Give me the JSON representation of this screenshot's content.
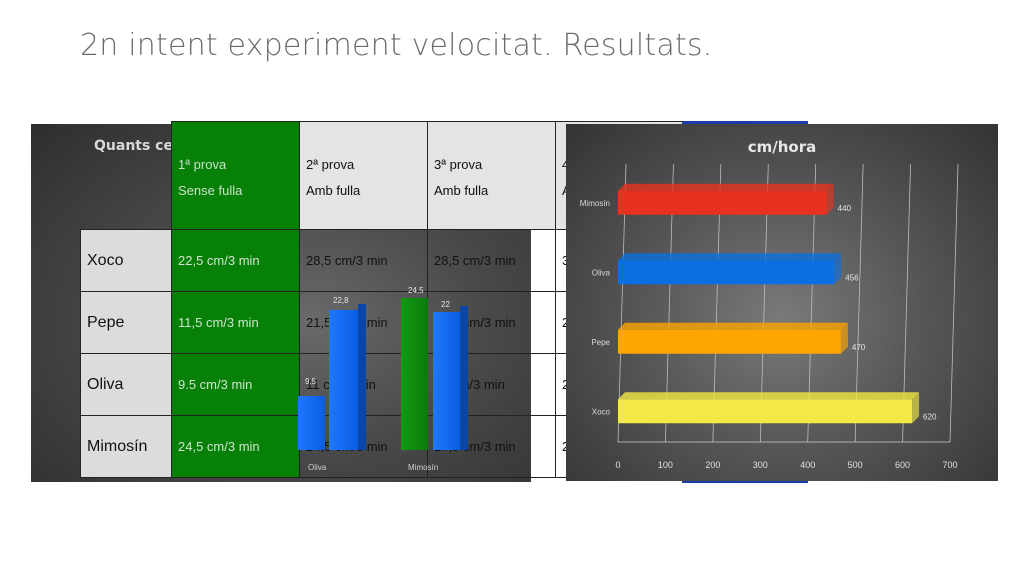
{
  "slide_title": "2n intent experiment velocitat. Resultats.",
  "table": {
    "columns": [
      {
        "line1": "1ª prova",
        "line2": "Sense fulla"
      },
      {
        "line1": "2ª prova",
        "line2": "Amb fulla"
      },
      {
        "line1": "3ª prova",
        "line2": "Amb fulla"
      },
      {
        "line1": "4",
        "line2": "A"
      }
    ],
    "rows": [
      {
        "name": "Xoco",
        "cells": [
          "22,5 cm/3 min",
          "28,5 cm/3 min",
          "28,5 cm/3 min",
          "3"
        ]
      },
      {
        "name": "Pepe",
        "cells": [
          "11,5 cm/3 min",
          "21,5 cm/3 min",
          "27,5 cm/3 min",
          "2"
        ]
      },
      {
        "name": "Oliva",
        "cells": [
          "9.5 cm/3 min",
          "11 cm/3 min",
          "31 cm/3 min",
          "2"
        ]
      },
      {
        "name": "Mimosín",
        "cells": [
          "24,5 cm/3 min",
          "24,5 cm/3 min",
          "17,5 cm/3 min",
          "2"
        ]
      }
    ]
  },
  "background_chart": {
    "title": "Quants ce",
    "bars": [
      {
        "label": "9,5",
        "color": "#1f78ff"
      },
      {
        "label": "22,8",
        "color": "#1f78ff"
      },
      {
        "label": "24,5",
        "color": "#139a13"
      },
      {
        "label": "22",
        "color": "#1f78ff"
      }
    ],
    "categories": [
      "Oliva",
      "Mimosín"
    ]
  },
  "chart_data": {
    "type": "bar",
    "orientation": "horizontal",
    "title": "cm/hora",
    "categories": [
      "Mimosín",
      "Oliva",
      "Pepe",
      "Xoco"
    ],
    "values": [
      440,
      456,
      470,
      620
    ],
    "colors": [
      "#e8321f",
      "#0a6fe0",
      "#ffa500",
      "#f3e844"
    ],
    "xlim": [
      0,
      700
    ],
    "xticks": [
      "0",
      "100",
      "200",
      "300",
      "400",
      "500",
      "600",
      "700"
    ],
    "grid": true
  }
}
